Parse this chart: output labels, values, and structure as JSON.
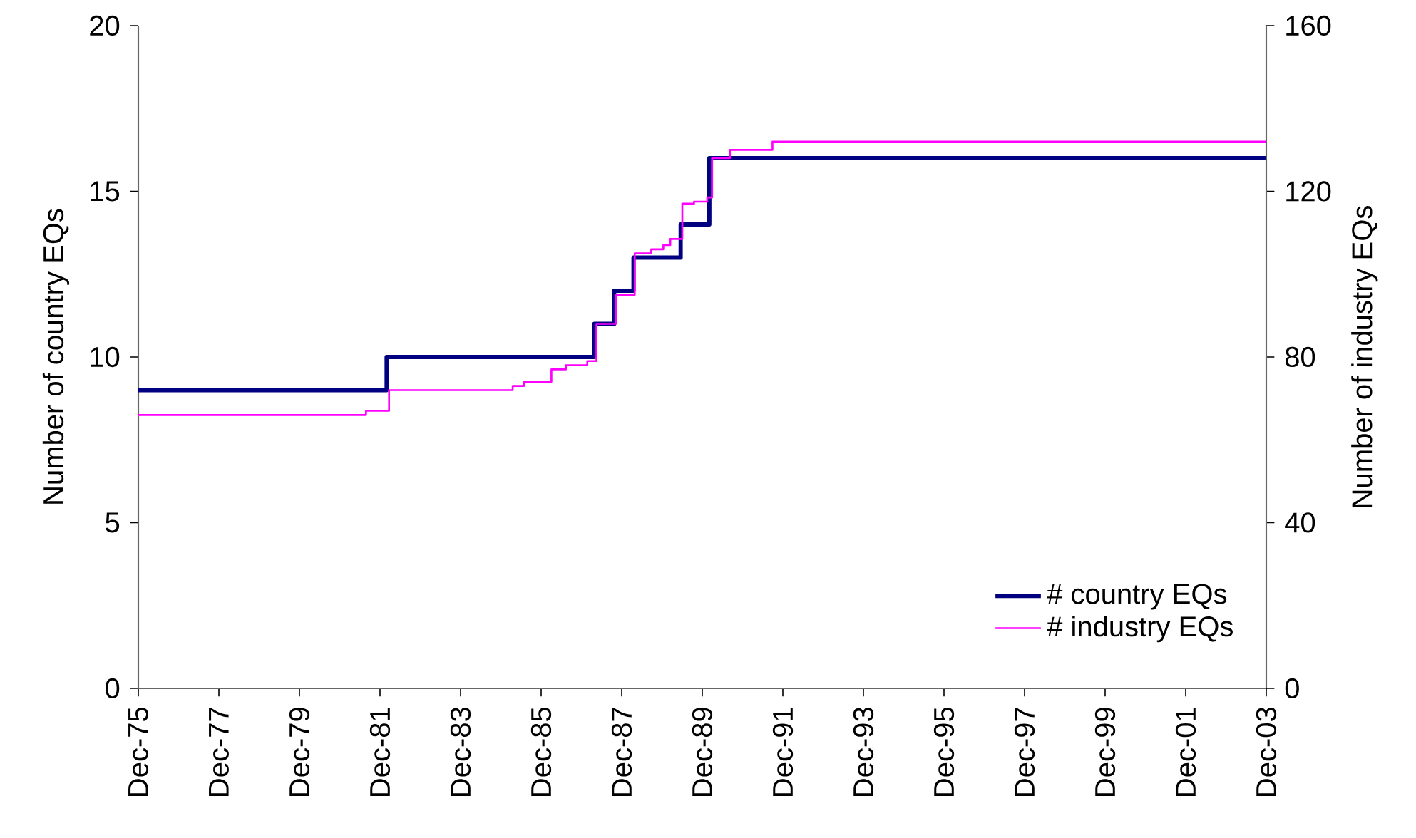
{
  "chart_data": {
    "type": "step",
    "ylabel": "Number of country EQs",
    "y2label": "Number of industry EQs",
    "xlim": [
      "1975-12",
      "2003-12"
    ],
    "xticks": [
      {
        "value": "1975-12",
        "label": "Dec-75"
      },
      {
        "value": "1977-12",
        "label": "Dec-77"
      },
      {
        "value": "1979-12",
        "label": "Dec-79"
      },
      {
        "value": "1981-12",
        "label": "Dec-81"
      },
      {
        "value": "1983-12",
        "label": "Dec-83"
      },
      {
        "value": "1985-12",
        "label": "Dec-85"
      },
      {
        "value": "1987-12",
        "label": "Dec-87"
      },
      {
        "value": "1989-12",
        "label": "Dec-89"
      },
      {
        "value": "1991-12",
        "label": "Dec-91"
      },
      {
        "value": "1993-12",
        "label": "Dec-93"
      },
      {
        "value": "1995-12",
        "label": "Dec-95"
      },
      {
        "value": "1997-12",
        "label": "Dec-97"
      },
      {
        "value": "1999-12",
        "label": "Dec-99"
      },
      {
        "value": "2001-12",
        "label": "Dec-01"
      },
      {
        "value": "2003-12",
        "label": "Dec-03"
      }
    ],
    "ylim": [
      0,
      20
    ],
    "yticks": [
      0,
      5,
      10,
      15,
      20
    ],
    "y2lim": [
      0,
      160
    ],
    "y2ticks": [
      0,
      40,
      80,
      120,
      160
    ],
    "legend": "bottom right",
    "grid": false,
    "series": [
      {
        "name": "# country EQs",
        "color": "#000080",
        "x": [
          "1975-12",
          "1982-01-30",
          "1987-03-28",
          "1987-09-24",
          "1988-03-17",
          "1989-05-19",
          "1990-02-03",
          "2003-12"
        ],
        "values": [
          9,
          10,
          11,
          12,
          13,
          14,
          16,
          16
        ]
      },
      {
        "name": "# industry EQs",
        "color": "#ff00ff",
        "axis": "y2",
        "x": [
          "1975-12",
          "1981-07-27",
          "1982-02-21",
          "1985-03-18",
          "1985-06-28",
          "1986-03-04",
          "1986-07-13",
          "1987-01-23",
          "1987-04-16",
          "1987-10-09",
          "1988-03-28",
          "1988-08-25",
          "1988-12-13",
          "1989-02-14",
          "1989-06-03",
          "1989-09-17",
          "1990-01-15",
          "1990-02-28",
          "1990-08-08",
          "1991-08-29",
          "2003-12"
        ],
        "values": [
          66,
          67,
          72,
          73,
          74,
          77,
          78,
          79,
          88,
          95,
          105,
          106,
          107,
          108.5,
          117,
          117.5,
          118.5,
          128,
          130,
          132,
          132
        ]
      }
    ]
  }
}
